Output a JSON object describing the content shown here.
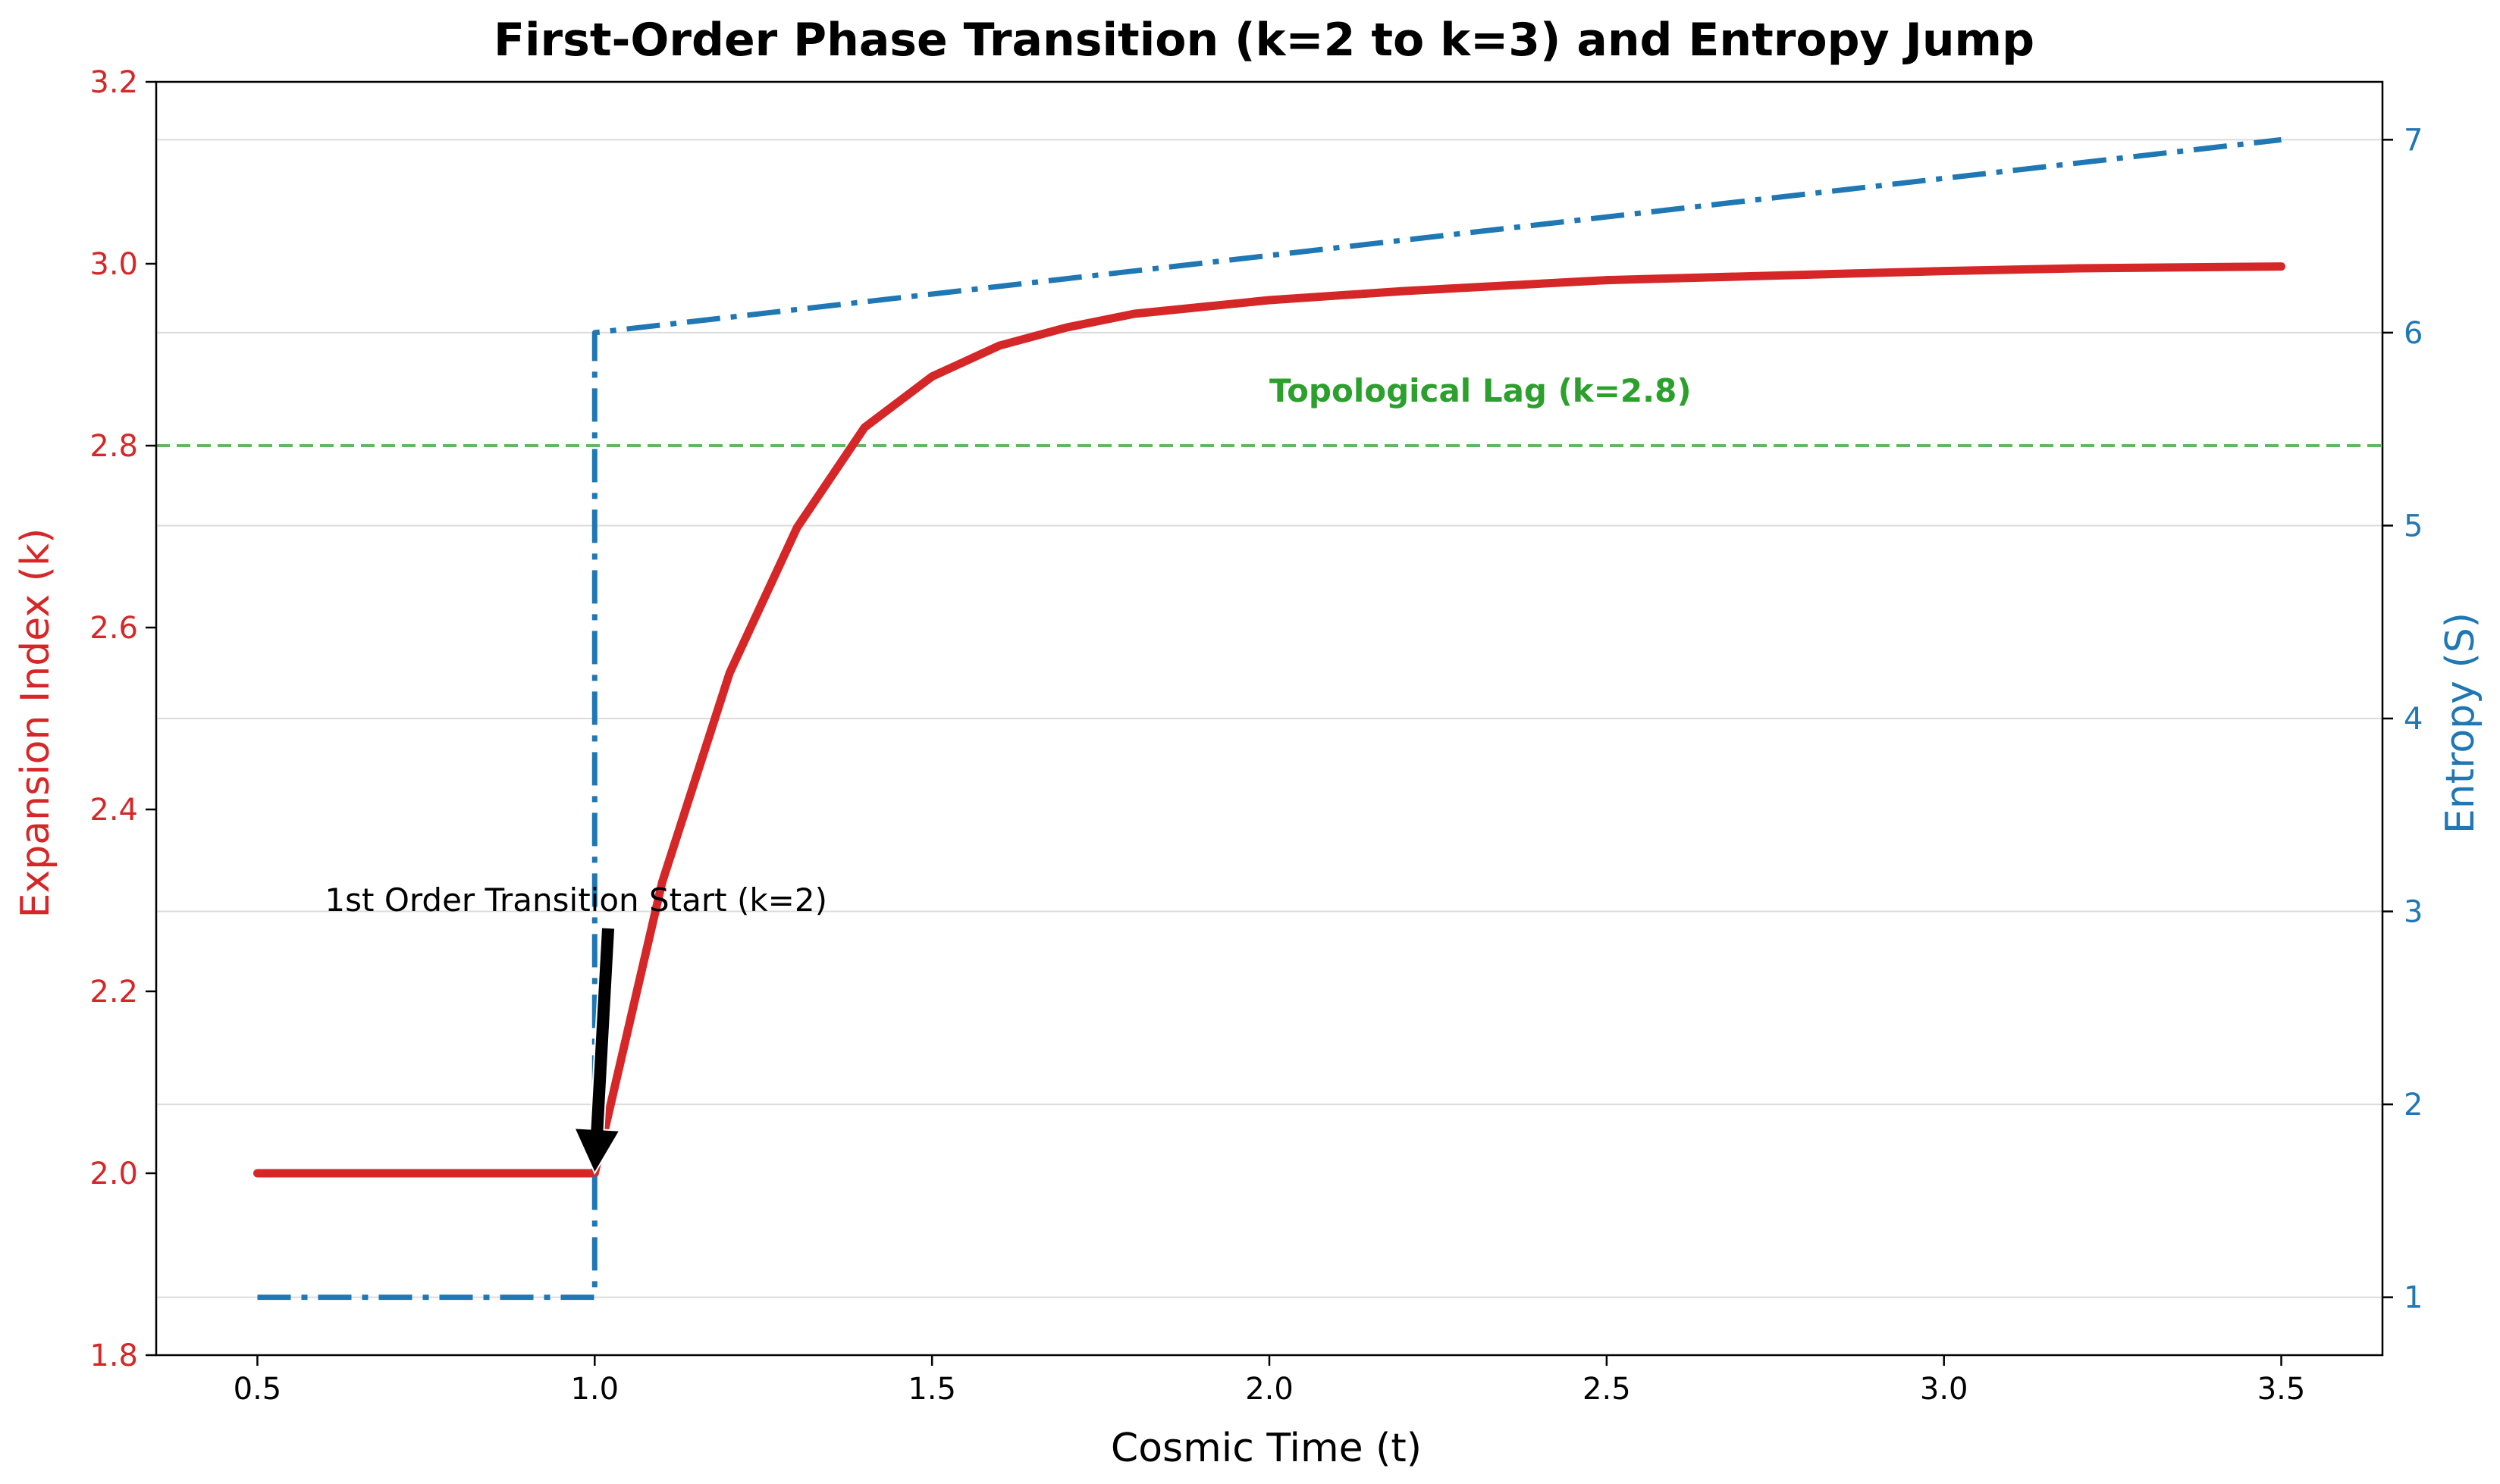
{
  "chart_data": {
    "type": "line",
    "title": "First-Order Phase Transition (k=2 to k=3) and Entropy Jump",
    "xlabel": "Cosmic Time (t)",
    "ylabel_left": "Expansion Index (k)",
    "ylabel_right": "Entropy (S)",
    "xlim": [
      0.35,
      3.65
    ],
    "ylim_left": [
      1.8,
      3.2
    ],
    "ylim_right": [
      0.7,
      7.3
    ],
    "x_ticks": [
      "0.5",
      "1.0",
      "1.5",
      "2.0",
      "2.5",
      "3.0",
      "3.5"
    ],
    "y_ticks_left": [
      "1.8",
      "2.0",
      "2.2",
      "2.4",
      "2.6",
      "2.8",
      "3.0",
      "3.2"
    ],
    "y_ticks_right": [
      "1",
      "2",
      "3",
      "4",
      "5",
      "6",
      "7"
    ],
    "grid": "horizontal, right axis",
    "colors": {
      "expansion": "#d62728",
      "entropy": "#1f77b4",
      "lag": "#2ca02c",
      "annotation": "#000000"
    },
    "series": [
      {
        "name": "Expansion Index (k)",
        "axis": "left",
        "style": "solid",
        "x": [
          0.5,
          1.0,
          1.0,
          1.1,
          1.2,
          1.3,
          1.4,
          1.5,
          1.6,
          1.7,
          1.8,
          2.0,
          2.2,
          2.5,
          2.8,
          3.0,
          3.2,
          3.5
        ],
        "y": [
          2.0,
          2.0,
          2.0,
          2.32,
          2.55,
          2.71,
          2.82,
          2.876,
          2.91,
          2.93,
          2.945,
          2.96,
          2.97,
          2.982,
          2.988,
          2.992,
          2.995,
          2.997
        ]
      },
      {
        "name": "Entropy (S)",
        "axis": "right",
        "style": "dashdot",
        "x": [
          0.5,
          1.0,
          1.0,
          1.0,
          3.5
        ],
        "y": [
          1.0,
          1.0,
          1.0,
          6.0,
          7.0
        ]
      }
    ],
    "reference_line": {
      "axis": "left",
      "y": 2.8,
      "label": "Topological Lag (k=2.8)",
      "label_x": 2.0,
      "label_y": 2.86
    },
    "annotation": {
      "text": "1st Order Transition Start (k=2)",
      "text_x": 0.6,
      "text_y": 2.3,
      "arrow_from": [
        1.02,
        2.27
      ],
      "arrow_to": [
        1.0,
        2.0
      ]
    }
  }
}
